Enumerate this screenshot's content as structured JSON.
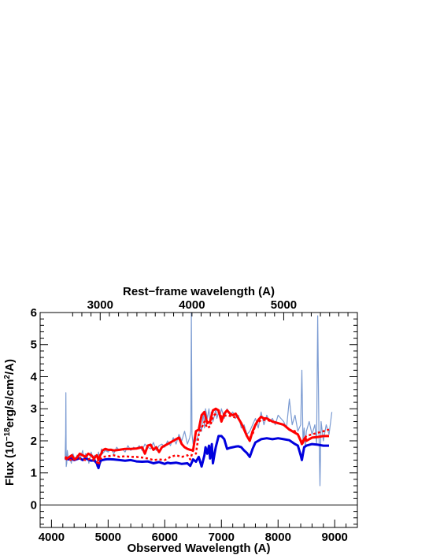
{
  "chart_data": {
    "type": "line",
    "title": "",
    "xlabel": "Observed Wavelength (A)",
    "ylabel_parts": {
      "pre": "Flux (10",
      "exp1": "−18",
      "mid": "erg/s/cm",
      "exp2": "2",
      "post": "/A)"
    },
    "top_xlabel": "Rest−frame wavelength (A)",
    "xlim": [
      3800,
      9400
    ],
    "ylim": [
      -0.7,
      6
    ],
    "x_ticks": [
      4000,
      5000,
      6000,
      7000,
      8000,
      9000
    ],
    "x_tick_labels": [
      "4000",
      "5000",
      "6000",
      "7000",
      "8000",
      "9000"
    ],
    "y_ticks": [
      0,
      1,
      2,
      3,
      4,
      5,
      6
    ],
    "y_tick_labels": [
      "0",
      "1",
      "2",
      "3",
      "4",
      "5",
      "6"
    ],
    "top_ticks_obs": [
      4860,
      6480,
      8100
    ],
    "top_tick_labels": [
      "3000",
      "4000",
      "5000"
    ],
    "zero_line": 0,
    "colors": {
      "observed": "#7b9bd2",
      "red": "#ff0000",
      "blue": "#0000dd"
    },
    "series": [
      {
        "key": "observed",
        "style": "thin",
        "x": [
          4240,
          4250,
          4255,
          4260,
          4270,
          4280,
          4300,
          4320,
          4350,
          4380,
          4400,
          4420,
          4450,
          4480,
          4500,
          4520,
          4550,
          4580,
          4600,
          4630,
          4660,
          4700,
          4730,
          4760,
          4800,
          4830,
          4860,
          4880,
          4900,
          4950,
          5000,
          5050,
          5100,
          5150,
          5200,
          5250,
          5300,
          5350,
          5400,
          5450,
          5500,
          5550,
          5600,
          5650,
          5700,
          5750,
          5800,
          5850,
          5900,
          5950,
          6000,
          6050,
          6100,
          6150,
          6200,
          6250,
          6300,
          6350,
          6400,
          6440,
          6460,
          6470,
          6480,
          6500,
          6520,
          6550,
          6600,
          6630,
          6650,
          6680,
          6700,
          6720,
          6750,
          6780,
          6800,
          6820,
          6850,
          6880,
          6900,
          6920,
          6950,
          6980,
          7000,
          7050,
          7100,
          7150,
          7200,
          7250,
          7300,
          7350,
          7400,
          7450,
          7500,
          7550,
          7600,
          7650,
          7700,
          7750,
          7800,
          7850,
          7900,
          7950,
          8000,
          8050,
          8100,
          8150,
          8200,
          8250,
          8300,
          8350,
          8400,
          8420,
          8440,
          8460,
          8480,
          8500,
          8550,
          8600,
          8650,
          8680,
          8700,
          8720,
          8740,
          8760,
          8800,
          8850,
          8900,
          8950
        ],
        "y": [
          1.4,
          2.2,
          3.5,
          1.2,
          1.3,
          1.7,
          1.4,
          1.5,
          1.3,
          1.6,
          1.5,
          1.4,
          1.55,
          1.45,
          1.6,
          1.5,
          1.7,
          1.4,
          1.6,
          1.55,
          1.3,
          1.65,
          1.5,
          1.55,
          1.2,
          1.65,
          1.4,
          1.75,
          1.6,
          1.7,
          1.65,
          1.75,
          1.6,
          1.8,
          1.7,
          1.75,
          1.65,
          1.85,
          1.7,
          1.8,
          1.75,
          1.85,
          1.7,
          1.9,
          1.8,
          1.75,
          1.95,
          1.7,
          1.85,
          1.9,
          1.8,
          2.0,
          1.85,
          2.1,
          1.9,
          2.2,
          2.0,
          2.3,
          1.9,
          2.1,
          2.3,
          6.0,
          2.2,
          1.9,
          2.1,
          2.0,
          2.2,
          2.5,
          2.3,
          2.9,
          2.4,
          3.0,
          2.7,
          3.0,
          2.5,
          2.9,
          2.6,
          2.8,
          3.0,
          2.7,
          2.9,
          2.8,
          3.0,
          2.7,
          3.0,
          2.8,
          2.9,
          2.7,
          2.8,
          2.4,
          2.5,
          2.2,
          2.3,
          2.5,
          2.7,
          2.4,
          2.9,
          2.5,
          2.8,
          2.6,
          2.7,
          2.5,
          2.8,
          2.7,
          2.6,
          2.4,
          3.3,
          2.5,
          2.8,
          2.3,
          2.5,
          4.2,
          2.0,
          2.4,
          1.8,
          2.3,
          2.6,
          2.2,
          2.5,
          1.9,
          5.9,
          2.4,
          0.6,
          2.6,
          2.0,
          2.5,
          2.2,
          2.9
        ]
      },
      {
        "key": "blue",
        "style": "solid",
        "x": [
          4240,
          4300,
          4350,
          4400,
          4450,
          4500,
          4550,
          4600,
          4650,
          4700,
          4750,
          4800,
          4830,
          4850,
          4870,
          4900,
          4950,
          5000,
          5100,
          5200,
          5300,
          5400,
          5500,
          5600,
          5700,
          5800,
          5900,
          6000,
          6050,
          6100,
          6200,
          6300,
          6400,
          6450,
          6500,
          6550,
          6600,
          6650,
          6700,
          6720,
          6750,
          6780,
          6800,
          6830,
          6850,
          6880,
          6900,
          6950,
          7000,
          7050,
          7100,
          7150,
          7200,
          7250,
          7300,
          7350,
          7400,
          7450,
          7500,
          7550,
          7600,
          7700,
          7800,
          7900,
          8000,
          8100,
          8200,
          8300,
          8350,
          8400,
          8420,
          8440,
          8460,
          8500,
          8600,
          8700,
          8800,
          8900
        ],
        "y": [
          1.48,
          1.42,
          1.45,
          1.4,
          1.43,
          1.46,
          1.4,
          1.45,
          1.42,
          1.38,
          1.4,
          1.3,
          1.15,
          1.3,
          1.38,
          1.4,
          1.42,
          1.43,
          1.42,
          1.4,
          1.38,
          1.4,
          1.36,
          1.35,
          1.36,
          1.3,
          1.34,
          1.28,
          1.32,
          1.3,
          1.32,
          1.28,
          1.3,
          1.22,
          1.42,
          1.35,
          1.5,
          1.2,
          1.55,
          1.8,
          1.6,
          1.85,
          1.45,
          1.9,
          1.3,
          1.6,
          1.8,
          2.15,
          2.15,
          2.05,
          1.75,
          1.78,
          1.8,
          1.82,
          1.83,
          1.8,
          1.7,
          1.62,
          1.5,
          1.75,
          1.95,
          2.05,
          2.08,
          2.05,
          2.08,
          2.05,
          2.02,
          1.9,
          1.85,
          1.55,
          1.4,
          1.6,
          1.8,
          1.85,
          1.9,
          1.88,
          1.85,
          1.85
        ]
      },
      {
        "key": "red",
        "style": "solid",
        "x": [
          4240,
          4280,
          4320,
          4360,
          4400,
          4450,
          4500,
          4550,
          4600,
          4650,
          4700,
          4750,
          4800,
          4830,
          4860,
          4880,
          4900,
          4950,
          5000,
          5050,
          5100,
          5200,
          5300,
          5400,
          5500,
          5600,
          5650,
          5700,
          5750,
          5800,
          5850,
          5900,
          5950,
          6000,
          6050,
          6100,
          6150,
          6200,
          6250,
          6300,
          6350,
          6400,
          6450,
          6500,
          6550,
          6600,
          6650,
          6700,
          6750,
          6800,
          6850,
          6900,
          6950,
          7000,
          7050,
          7100,
          7150,
          7200,
          7250,
          7300,
          7350,
          7400,
          7450,
          7500,
          7550,
          7600,
          7650,
          7700,
          7750,
          7800,
          7850,
          7900,
          8000,
          8100,
          8200,
          8300,
          8350,
          8400,
          8420,
          8440,
          8460,
          8480,
          8500,
          8550,
          8600,
          8700,
          8800,
          8900
        ],
        "y": [
          1.5,
          1.45,
          1.5,
          1.55,
          1.42,
          1.48,
          1.6,
          1.55,
          1.5,
          1.6,
          1.55,
          1.45,
          1.55,
          1.4,
          1.55,
          1.6,
          1.7,
          1.75,
          1.72,
          1.72,
          1.7,
          1.72,
          1.75,
          1.75,
          1.76,
          1.8,
          1.6,
          1.85,
          1.88,
          1.72,
          1.8,
          1.65,
          1.8,
          1.85,
          1.9,
          1.95,
          2.0,
          2.05,
          2.1,
          1.9,
          1.8,
          1.75,
          1.72,
          1.7,
          2.3,
          2.35,
          2.8,
          2.9,
          2.55,
          2.6,
          2.95,
          3.0,
          2.95,
          2.6,
          2.85,
          2.95,
          2.85,
          2.8,
          2.85,
          2.7,
          2.55,
          2.35,
          2.15,
          2.0,
          2.3,
          2.5,
          2.65,
          2.75,
          2.7,
          2.7,
          2.65,
          2.6,
          2.55,
          2.5,
          2.35,
          2.25,
          2.2,
          2.0,
          1.9,
          1.95,
          2.05,
          2.1,
          2.0,
          2.05,
          2.1,
          2.12,
          2.15,
          2.15
        ]
      },
      {
        "key": "red",
        "style": "dotted",
        "x": [
          4240,
          4300,
          4400,
          4500,
          4600,
          4700,
          4800,
          4830,
          4860,
          4900,
          5000,
          5100,
          5200,
          5300,
          5400,
          5500,
          5600,
          5700,
          5800,
          5900,
          6000,
          6100,
          6200,
          6300,
          6400,
          6450,
          6500,
          6550,
          6600,
          6650,
          6700,
          6750,
          6800,
          6850,
          6900,
          6950,
          7000,
          7100,
          7200,
          7300,
          7400,
          7450,
          7500,
          7550,
          7600,
          7700,
          7800,
          7900,
          8000,
          8100,
          8200,
          8300,
          8350,
          8400,
          8440,
          8480,
          8500,
          8600,
          8700,
          8800,
          8900
        ],
        "y": [
          1.45,
          1.4,
          1.42,
          1.45,
          1.4,
          1.45,
          1.35,
          1.25,
          1.42,
          1.5,
          1.52,
          1.55,
          1.5,
          1.52,
          1.5,
          1.5,
          1.48,
          1.45,
          1.4,
          1.42,
          1.4,
          1.5,
          1.55,
          1.5,
          1.55,
          1.42,
          1.7,
          1.6,
          2.2,
          2.4,
          2.6,
          2.4,
          2.45,
          2.75,
          2.85,
          2.9,
          2.75,
          2.8,
          2.75,
          2.7,
          2.4,
          2.15,
          2.1,
          2.2,
          2.5,
          2.65,
          2.65,
          2.6,
          2.55,
          2.5,
          2.35,
          2.3,
          2.2,
          2.0,
          2.0,
          2.1,
          2.15,
          2.2,
          2.25,
          2.3,
          2.35
        ]
      }
    ]
  }
}
